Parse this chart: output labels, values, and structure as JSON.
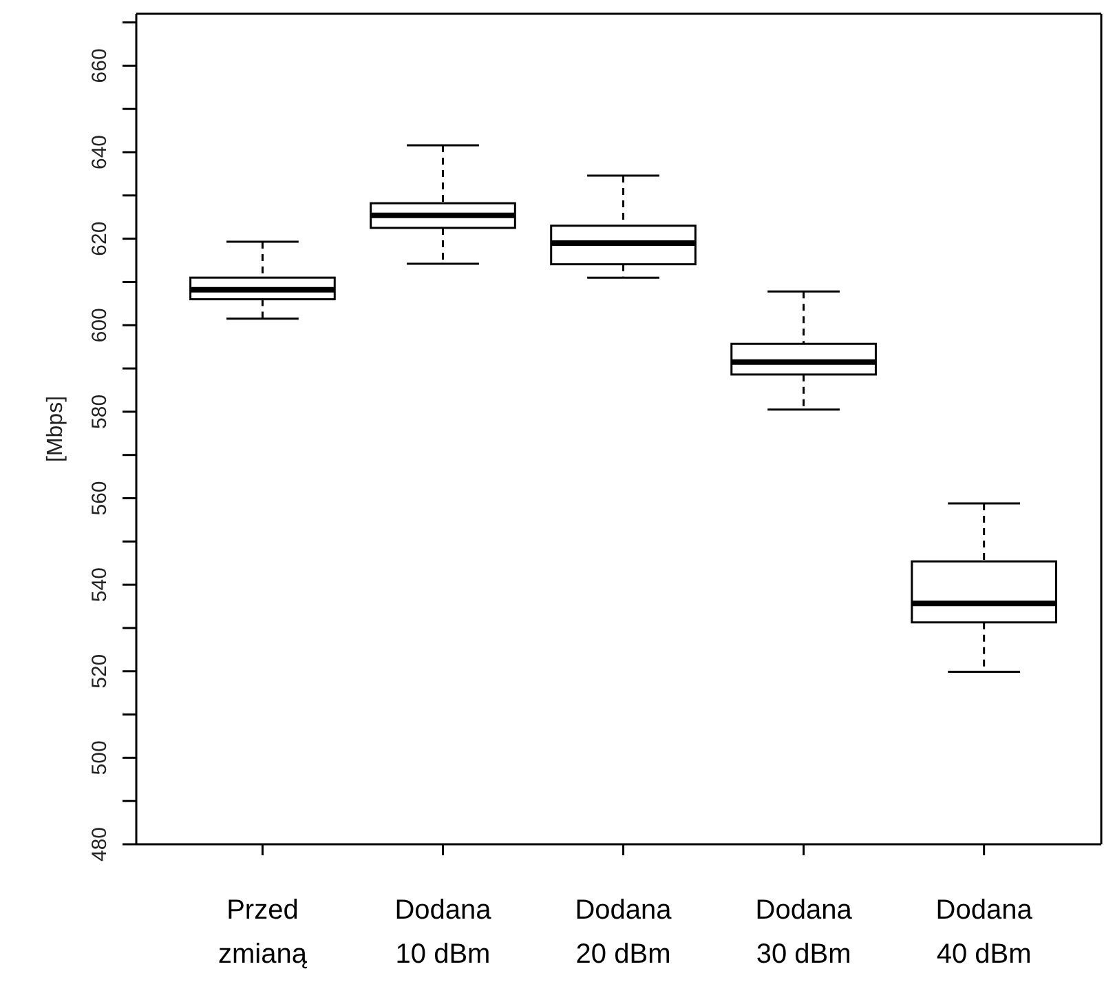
{
  "chart_data": {
    "type": "box",
    "ylabel": "[Mbps]",
    "categories": [
      "Przed zmianą",
      "Dodana 10 dBm",
      "Dodana 20 dBm",
      "Dodana 30 dBm",
      "Dodana 40 dBm"
    ],
    "boxes": [
      {
        "low": 601.5,
        "q1": 606,
        "median": 608.2,
        "q3": 611,
        "high": 619.3
      },
      {
        "low": 614.2,
        "q1": 622.5,
        "median": 625.4,
        "q3": 628.2,
        "high": 641.6
      },
      {
        "low": 611,
        "q1": 614.1,
        "median": 619,
        "q3": 623,
        "high": 634.6
      },
      {
        "low": 580.5,
        "q1": 588.6,
        "median": 591.5,
        "q3": 595.7,
        "high": 607.8
      },
      {
        "low": 519.9,
        "q1": 531.3,
        "median": 535.7,
        "q3": 545.4,
        "high": 558.8
      }
    ],
    "ylim": [
      480,
      672
    ],
    "yticks": [
      480,
      {
        "value": 490,
        "label": null
      },
      500,
      {
        "value": 510,
        "label": null
      },
      520,
      {
        "value": 530,
        "label": null
      },
      540,
      {
        "value": 550,
        "label": null
      },
      560,
      {
        "value": 570,
        "label": null
      },
      580,
      {
        "value": 590,
        "label": null
      },
      600,
      {
        "value": 610,
        "label": null
      },
      620,
      {
        "value": 630,
        "label": null
      },
      640,
      {
        "value": 650,
        "label": null
      },
      660,
      {
        "value": 670,
        "label": null
      }
    ],
    "grid": false
  }
}
